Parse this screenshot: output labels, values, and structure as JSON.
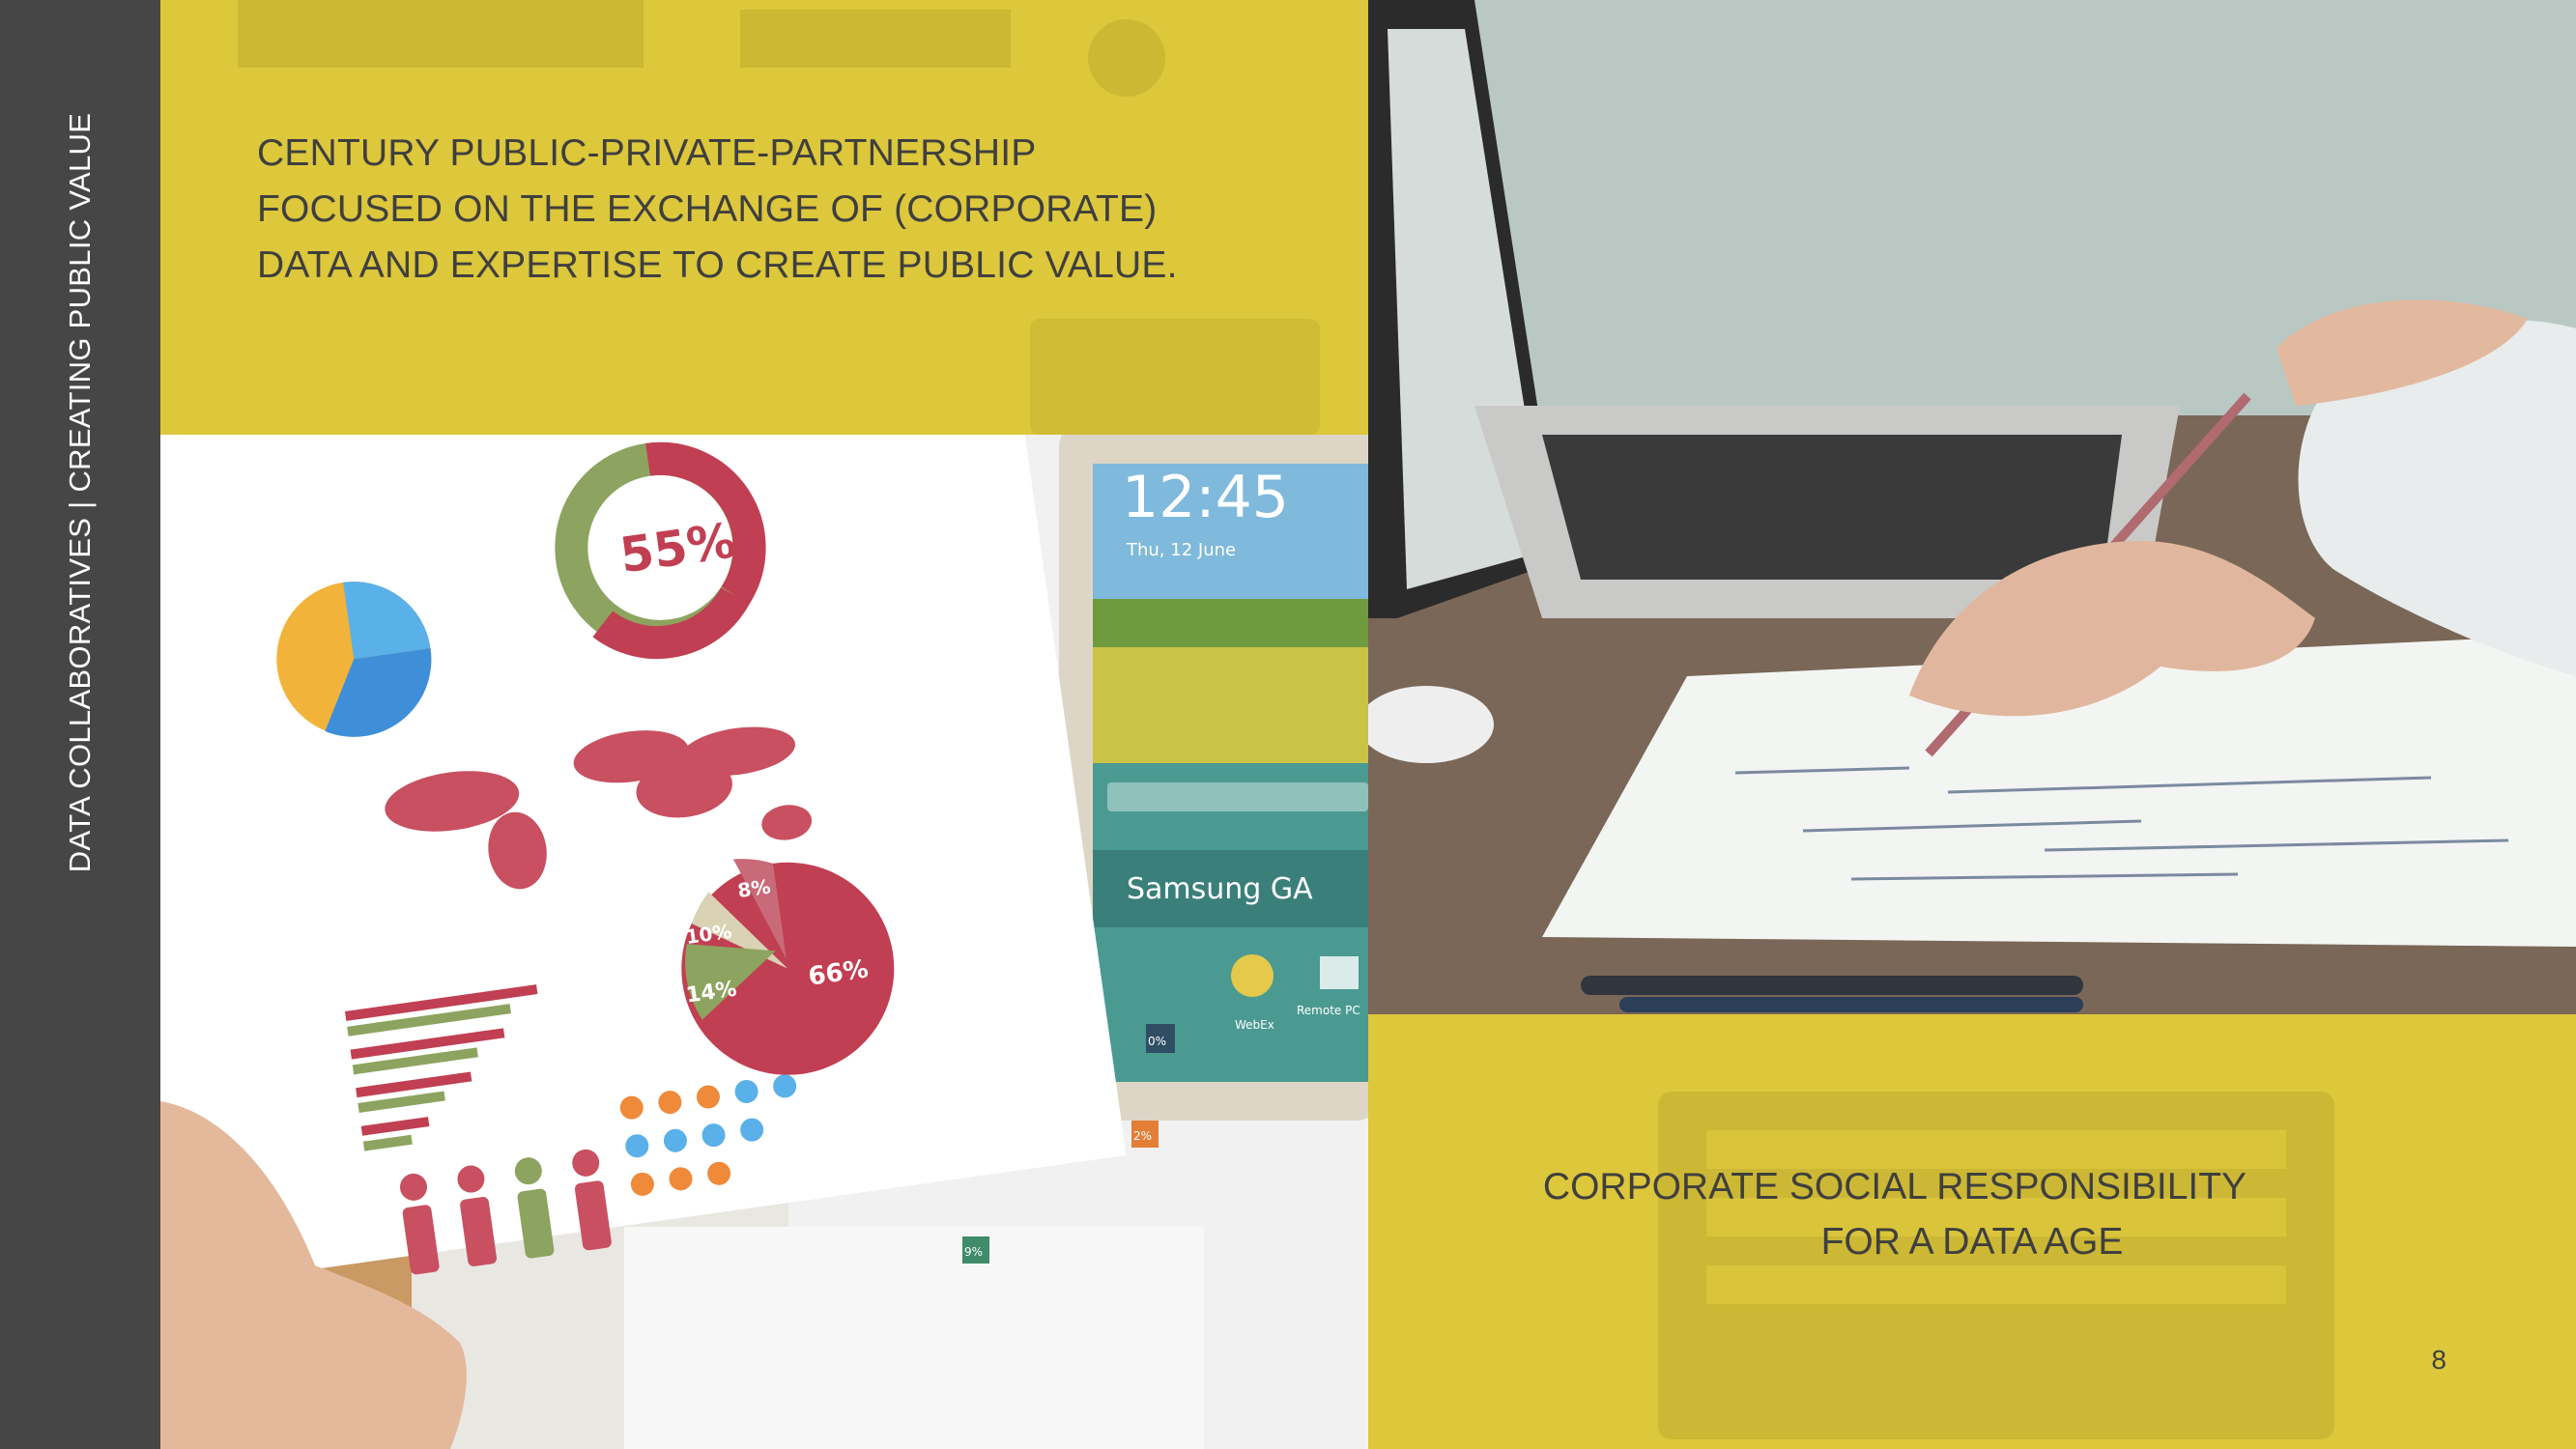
{
  "sidebar": {
    "label": "DATA COLLABORATIVES | CREATING PUBLIC VALUE"
  },
  "headline": {
    "lines": [
      "CENTURY PUBLIC-PRIVATE-PARTNERSHIP",
      "FOCUSED ON THE EXCHANGE OF (CORPORATE)",
      "DATA AND EXPERTISE TO CREATE PUBLIC VALUE."
    ]
  },
  "photo_infographics": {
    "tablet_time": "12:45",
    "tablet_date": "Thu, 12 June",
    "tablet_brand": "Samsung GA",
    "tablet_app_1": "WebEx",
    "tablet_app_2": "Remote PC",
    "donut_percent": "55%",
    "pie_labels": [
      "8%",
      "10%",
      "14%",
      "66%"
    ],
    "badges": [
      "0%",
      "2%",
      "9%"
    ]
  },
  "subhead": {
    "lines": [
      "CORPORATE SOCIAL RESPONSIBILITY",
      "FOR A DATA AGE"
    ]
  },
  "page_number": "8",
  "colors": {
    "sidebar": "#464646",
    "yellow": "#ddc73b",
    "text": "#3f3f3f"
  }
}
